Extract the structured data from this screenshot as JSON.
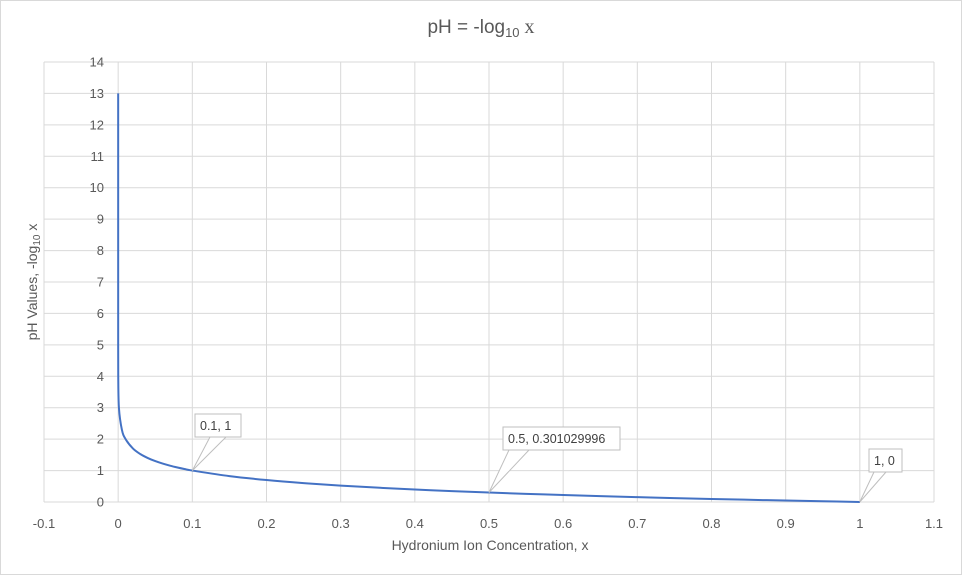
{
  "chart_data": {
    "type": "scatter",
    "title": {
      "prefix": "pH = -log",
      "subscript": "10",
      "suffix": " x"
    },
    "xlabel": "Hydronium Ion Concentration, x",
    "ylabel": {
      "prefix": "pH Values, -log",
      "subscript": "10",
      "suffix": " x"
    },
    "xlim": [
      -0.1,
      1.1
    ],
    "ylim": [
      0,
      14
    ],
    "x_ticks": [
      "-0.1",
      "0",
      "0.1",
      "0.2",
      "0.3",
      "0.4",
      "0.5",
      "0.6",
      "0.7",
      "0.8",
      "0.9",
      "1",
      "1.1"
    ],
    "y_ticks": [
      "0",
      "1",
      "2",
      "3",
      "4",
      "5",
      "6",
      "7",
      "8",
      "9",
      "10",
      "11",
      "12",
      "13",
      "14"
    ],
    "grid": true,
    "line_color": "#4472c4",
    "grid_color": "#d9d9d9",
    "series": [
      {
        "x": [
          1e-13,
          1e-12,
          1e-11,
          1e-10,
          1e-09,
          1e-08,
          1e-07,
          1e-06,
          1e-05,
          0.0001,
          0.001,
          0.005,
          0.01,
          0.02,
          0.03,
          0.04,
          0.05,
          0.06,
          0.07,
          0.08,
          0.09,
          0.1,
          0.15,
          0.2,
          0.25,
          0.3,
          0.35,
          0.4,
          0.45,
          0.5,
          0.55,
          0.6,
          0.65,
          0.7,
          0.75,
          0.8,
          0.85,
          0.9,
          0.95,
          1
        ],
        "y": [
          13,
          12,
          11,
          10,
          9,
          8,
          7,
          6,
          5,
          4,
          3,
          2.30103,
          2,
          1.69897,
          1.52288,
          1.39794,
          1.30103,
          1.22185,
          1.1549,
          1.09691,
          1.04576,
          1,
          0.82391,
          0.69897,
          0.60206,
          0.52288,
          0.45593,
          0.39794,
          0.34679,
          0.30103,
          0.25964,
          0.22185,
          0.18709,
          0.1549,
          0.12494,
          0.09691,
          0.07058,
          0.04576,
          0.02228,
          0
        ]
      }
    ],
    "data_labels": [
      {
        "text": "0.1, 1",
        "x": 0.1,
        "y": 1
      },
      {
        "text": "0.5, 0.301029996",
        "x": 0.5,
        "y": 0.301029996
      },
      {
        "text": "1, 0",
        "x": 1,
        "y": 0
      }
    ]
  }
}
